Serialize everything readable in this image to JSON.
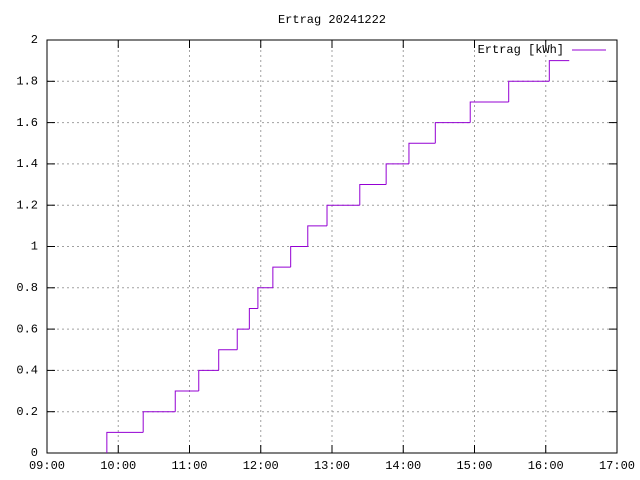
{
  "chart_data": {
    "type": "step",
    "title": "Ertrag 20241222",
    "x": [
      9.84,
      9.84,
      10.35,
      10.8,
      11.13,
      11.41,
      11.67,
      11.84,
      11.96,
      12.17,
      12.42,
      12.66,
      12.93,
      13.39,
      13.76,
      14.08,
      14.45,
      14.94,
      15.48,
      16.05,
      16.33
    ],
    "series": [
      {
        "name": "Ertrag [kWh]",
        "color": "#9400d3",
        "values": [
          0,
          0.1,
          0.2,
          0.3,
          0.4,
          0.5,
          0.6,
          0.7,
          0.8,
          0.9,
          1,
          1.1,
          1.2,
          1.3,
          1.4,
          1.5,
          1.6,
          1.7,
          1.8,
          1.9,
          1.9
        ]
      }
    ],
    "xlim": [
      9,
      17
    ],
    "xticks": [
      {
        "value": 9,
        "label": "09:00"
      },
      {
        "value": 10,
        "label": "10:00"
      },
      {
        "value": 11,
        "label": "11:00"
      },
      {
        "value": 12,
        "label": "12:00"
      },
      {
        "value": 13,
        "label": "13:00"
      },
      {
        "value": 14,
        "label": "14:00"
      },
      {
        "value": 15,
        "label": "15:00"
      },
      {
        "value": 16,
        "label": "16:00"
      },
      {
        "value": 17,
        "label": "17:00"
      }
    ],
    "ylim": [
      0,
      2
    ],
    "yticks": [
      0,
      0.2,
      0.4,
      0.6,
      0.8,
      1,
      1.2,
      1.4,
      1.6,
      1.8,
      2
    ],
    "grid": true,
    "legend": "top-right"
  }
}
